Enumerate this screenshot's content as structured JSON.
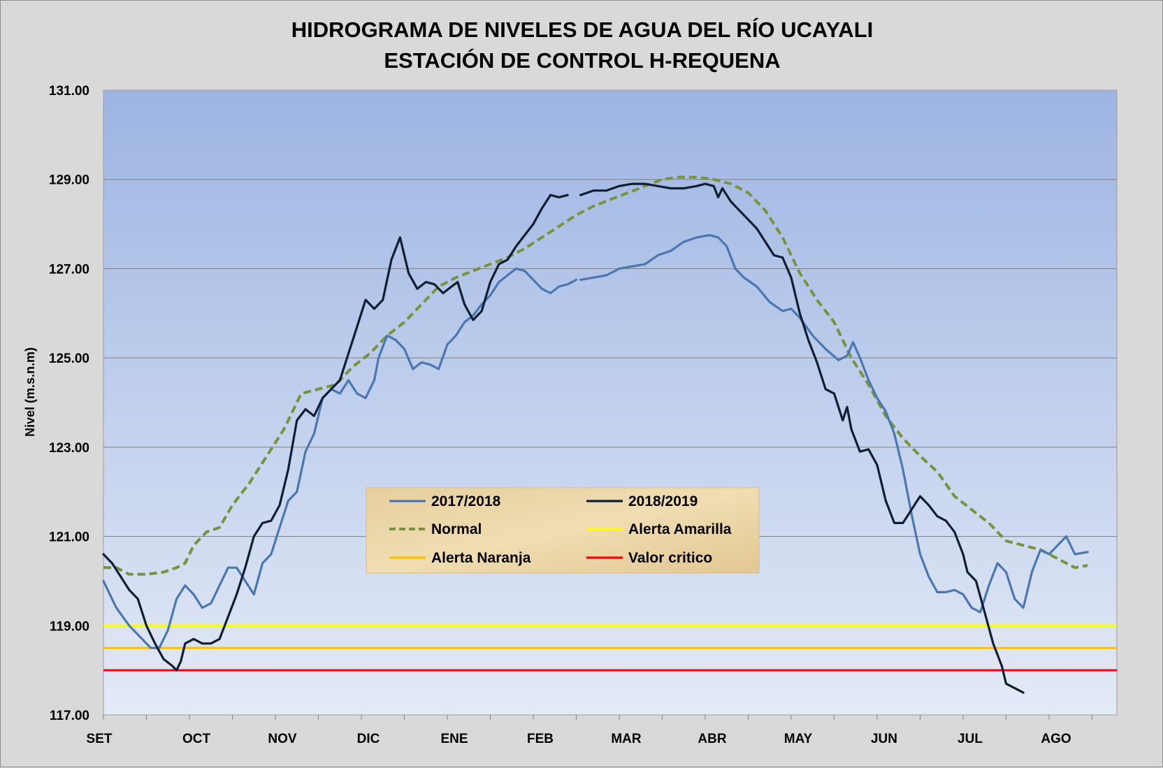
{
  "chart_data": {
    "type": "line",
    "title": "HIDROGRAMA DE NIVELES DE AGUA DEL RÍO UCAYALI",
    "subtitle": "ESTACIÓN DE CONTROL H-REQUENA",
    "ylabel": "Nivel (m.s.n.m)",
    "xlabel": "",
    "ylim": [
      117,
      131
    ],
    "yticks": [
      "117.00",
      "119.00",
      "121.00",
      "123.00",
      "125.00",
      "127.00",
      "129.00",
      "131.00"
    ],
    "xlim": [
      0,
      11.55
    ],
    "categories": [
      "SET",
      "OCT",
      "NOV",
      "DIC",
      "ENE",
      "FEB",
      "MAR",
      "ABR",
      "MAY",
      "JUN",
      "JUL",
      "AGO"
    ],
    "grid": true,
    "legend_position": "center-left",
    "series": [
      {
        "name": "2017/2018",
        "color": "#4a77b0",
        "style": "solid",
        "points": [
          [
            0,
            120.0
          ],
          [
            0.15,
            119.4
          ],
          [
            0.3,
            119.0
          ],
          [
            0.45,
            118.7
          ],
          [
            0.55,
            118.5
          ],
          [
            0.65,
            118.5
          ],
          [
            0.75,
            118.9
          ],
          [
            0.85,
            119.6
          ],
          [
            0.95,
            119.9
          ],
          [
            1.05,
            119.7
          ],
          [
            1.15,
            119.4
          ],
          [
            1.25,
            119.5
          ],
          [
            1.35,
            119.9
          ],
          [
            1.45,
            120.3
          ],
          [
            1.55,
            120.3
          ],
          [
            1.65,
            120.0
          ],
          [
            1.75,
            119.7
          ],
          [
            1.85,
            120.4
          ],
          [
            1.95,
            120.6
          ],
          [
            2.05,
            121.2
          ],
          [
            2.15,
            121.8
          ],
          [
            2.25,
            122.0
          ],
          [
            2.35,
            122.9
          ],
          [
            2.45,
            123.3
          ],
          [
            2.55,
            124.1
          ],
          [
            2.65,
            124.3
          ],
          [
            2.75,
            124.2
          ],
          [
            2.85,
            124.5
          ],
          [
            2.95,
            124.2
          ],
          [
            3.05,
            124.1
          ],
          [
            3.15,
            124.5
          ],
          [
            3.2,
            125.0
          ],
          [
            3.3,
            125.5
          ],
          [
            3.4,
            125.4
          ],
          [
            3.5,
            125.2
          ],
          [
            3.6,
            124.75
          ],
          [
            3.7,
            124.9
          ],
          [
            3.8,
            124.85
          ],
          [
            3.9,
            124.75
          ],
          [
            4.0,
            125.3
          ],
          [
            4.1,
            125.5
          ],
          [
            4.2,
            125.8
          ],
          [
            4.3,
            125.95
          ],
          [
            4.4,
            126.2
          ],
          [
            4.5,
            126.4
          ],
          [
            4.6,
            126.7
          ],
          [
            4.7,
            126.85
          ],
          [
            4.8,
            127.0
          ],
          [
            4.9,
            126.95
          ],
          [
            5.0,
            126.75
          ],
          [
            5.1,
            126.55
          ],
          [
            5.2,
            126.45
          ],
          [
            5.3,
            126.6
          ],
          [
            5.4,
            126.65
          ],
          [
            5.5,
            126.75
          ],
          null,
          [
            5.55,
            126.75
          ],
          [
            5.7,
            126.8
          ],
          [
            5.85,
            126.85
          ],
          [
            6.0,
            127.0
          ],
          [
            6.15,
            127.05
          ],
          [
            6.3,
            127.1
          ],
          [
            6.45,
            127.3
          ],
          [
            6.6,
            127.4
          ],
          [
            6.75,
            127.6
          ],
          [
            6.9,
            127.7
          ],
          [
            7.05,
            127.75
          ],
          [
            7.15,
            127.7
          ],
          [
            7.25,
            127.5
          ],
          [
            7.35,
            127.0
          ],
          [
            7.45,
            126.8
          ],
          [
            7.6,
            126.6
          ],
          [
            7.75,
            126.25
          ],
          [
            7.9,
            126.05
          ],
          [
            8.0,
            126.1
          ],
          [
            8.1,
            125.9
          ],
          [
            8.25,
            125.5
          ],
          [
            8.4,
            125.2
          ],
          [
            8.55,
            124.95
          ],
          [
            8.65,
            125.05
          ],
          [
            8.72,
            125.35
          ],
          [
            8.8,
            125.0
          ],
          [
            8.9,
            124.5
          ],
          [
            9.0,
            124.1
          ],
          [
            9.1,
            123.8
          ],
          [
            9.2,
            123.3
          ],
          [
            9.3,
            122.5
          ],
          [
            9.4,
            121.5
          ],
          [
            9.5,
            120.6
          ],
          [
            9.6,
            120.1
          ],
          [
            9.7,
            119.75
          ],
          [
            9.8,
            119.75
          ],
          [
            9.9,
            119.8
          ],
          [
            10.0,
            119.7
          ],
          [
            10.1,
            119.4
          ],
          [
            10.2,
            119.3
          ],
          [
            10.3,
            119.9
          ],
          [
            10.4,
            120.4
          ],
          [
            10.5,
            120.2
          ],
          [
            10.6,
            119.6
          ],
          [
            10.7,
            119.4
          ],
          [
            10.8,
            120.2
          ],
          [
            10.9,
            120.7
          ],
          [
            11.0,
            120.6
          ],
          [
            11.1,
            120.8
          ],
          [
            11.2,
            121.0
          ],
          [
            11.3,
            120.6
          ],
          [
            11.45,
            120.65
          ]
        ]
      },
      {
        "name": "2018/2019",
        "color": "#0f1e33",
        "style": "solid",
        "points": [
          [
            0,
            120.6
          ],
          [
            0.1,
            120.4
          ],
          [
            0.2,
            120.1
          ],
          [
            0.3,
            119.8
          ],
          [
            0.4,
            119.6
          ],
          [
            0.5,
            119.0
          ],
          [
            0.6,
            118.6
          ],
          [
            0.7,
            118.25
          ],
          [
            0.8,
            118.1
          ],
          [
            0.85,
            118.0
          ],
          [
            0.9,
            118.2
          ],
          [
            0.95,
            118.6
          ],
          [
            1.05,
            118.7
          ],
          [
            1.15,
            118.6
          ],
          [
            1.25,
            118.6
          ],
          [
            1.35,
            118.7
          ],
          [
            1.45,
            119.2
          ],
          [
            1.55,
            119.7
          ],
          [
            1.65,
            120.3
          ],
          [
            1.75,
            121.0
          ],
          [
            1.85,
            121.3
          ],
          [
            1.95,
            121.35
          ],
          [
            2.05,
            121.7
          ],
          [
            2.15,
            122.5
          ],
          [
            2.25,
            123.6
          ],
          [
            2.35,
            123.85
          ],
          [
            2.45,
            123.7
          ],
          [
            2.55,
            124.1
          ],
          [
            2.65,
            124.3
          ],
          [
            2.75,
            124.5
          ],
          [
            2.85,
            125.1
          ],
          [
            2.95,
            125.7
          ],
          [
            3.05,
            126.3
          ],
          [
            3.15,
            126.1
          ],
          [
            3.25,
            126.3
          ],
          [
            3.35,
            127.2
          ],
          [
            3.45,
            127.7
          ],
          [
            3.55,
            126.9
          ],
          [
            3.65,
            126.55
          ],
          [
            3.75,
            126.7
          ],
          [
            3.85,
            126.65
          ],
          [
            3.95,
            126.45
          ],
          [
            4.05,
            126.6
          ],
          [
            4.12,
            126.7
          ],
          [
            4.2,
            126.2
          ],
          [
            4.3,
            125.85
          ],
          [
            4.4,
            126.05
          ],
          [
            4.5,
            126.7
          ],
          [
            4.6,
            127.1
          ],
          [
            4.7,
            127.2
          ],
          [
            4.8,
            127.5
          ],
          [
            4.9,
            127.75
          ],
          [
            5.0,
            128.0
          ],
          [
            5.1,
            128.35
          ],
          [
            5.2,
            128.65
          ],
          [
            5.3,
            128.6
          ],
          [
            5.4,
            128.65
          ],
          null,
          [
            5.55,
            128.65
          ],
          [
            5.7,
            128.75
          ],
          [
            5.85,
            128.75
          ],
          [
            6.0,
            128.85
          ],
          [
            6.15,
            128.9
          ],
          [
            6.3,
            128.9
          ],
          [
            6.45,
            128.85
          ],
          [
            6.6,
            128.8
          ],
          [
            6.75,
            128.8
          ],
          [
            6.9,
            128.85
          ],
          [
            7.0,
            128.9
          ],
          [
            7.1,
            128.85
          ],
          [
            7.15,
            128.6
          ],
          [
            7.2,
            128.8
          ],
          [
            7.3,
            128.5
          ],
          [
            7.45,
            128.2
          ],
          [
            7.6,
            127.9
          ],
          [
            7.7,
            127.6
          ],
          [
            7.8,
            127.3
          ],
          [
            7.9,
            127.25
          ],
          [
            8.0,
            126.8
          ],
          [
            8.1,
            126.0
          ],
          [
            8.2,
            125.4
          ],
          [
            8.3,
            124.9
          ],
          [
            8.4,
            124.3
          ],
          [
            8.5,
            124.2
          ],
          [
            8.6,
            123.6
          ],
          [
            8.65,
            123.9
          ],
          [
            8.7,
            123.4
          ],
          [
            8.8,
            122.9
          ],
          [
            8.9,
            122.95
          ],
          [
            9.0,
            122.6
          ],
          [
            9.1,
            121.8
          ],
          [
            9.2,
            121.3
          ],
          [
            9.3,
            121.3
          ],
          [
            9.4,
            121.6
          ],
          [
            9.5,
            121.9
          ],
          [
            9.6,
            121.7
          ],
          [
            9.7,
            121.45
          ],
          [
            9.8,
            121.35
          ],
          [
            9.9,
            121.1
          ],
          [
            10.0,
            120.6
          ],
          [
            10.05,
            120.2
          ],
          [
            10.15,
            120.0
          ],
          [
            10.25,
            119.3
          ],
          [
            10.35,
            118.6
          ],
          [
            10.45,
            118.1
          ],
          [
            10.5,
            117.7
          ],
          [
            10.6,
            117.6
          ],
          [
            10.7,
            117.5
          ]
        ]
      },
      {
        "name": "Normal",
        "color": "#77933c",
        "style": "dashed",
        "points": [
          [
            0,
            120.3
          ],
          [
            0.15,
            120.3
          ],
          [
            0.3,
            120.15
          ],
          [
            0.5,
            120.15
          ],
          [
            0.7,
            120.2
          ],
          [
            0.85,
            120.3
          ],
          [
            0.95,
            120.4
          ],
          [
            1.05,
            120.8
          ],
          [
            1.2,
            121.1
          ],
          [
            1.35,
            121.2
          ],
          [
            1.5,
            121.7
          ],
          [
            1.7,
            122.2
          ],
          [
            1.9,
            122.8
          ],
          [
            2.1,
            123.4
          ],
          [
            2.3,
            124.2
          ],
          [
            2.5,
            124.3
          ],
          [
            2.7,
            124.4
          ],
          [
            2.9,
            124.8
          ],
          [
            3.1,
            125.1
          ],
          [
            3.3,
            125.5
          ],
          [
            3.5,
            125.8
          ],
          [
            3.7,
            126.2
          ],
          [
            3.9,
            126.6
          ],
          [
            4.1,
            126.8
          ],
          [
            4.3,
            126.95
          ],
          [
            4.5,
            127.1
          ],
          [
            4.7,
            127.25
          ],
          [
            4.9,
            127.45
          ],
          [
            5.1,
            127.7
          ],
          [
            5.3,
            127.95
          ],
          [
            5.5,
            128.2
          ],
          [
            5.7,
            128.4
          ],
          [
            5.9,
            128.55
          ],
          [
            6.1,
            128.7
          ],
          [
            6.3,
            128.85
          ],
          [
            6.5,
            129.0
          ],
          [
            6.7,
            129.05
          ],
          [
            6.9,
            129.05
          ],
          [
            7.1,
            129.0
          ],
          [
            7.3,
            128.9
          ],
          [
            7.5,
            128.7
          ],
          [
            7.7,
            128.3
          ],
          [
            7.9,
            127.7
          ],
          [
            8.1,
            126.9
          ],
          [
            8.3,
            126.3
          ],
          [
            8.5,
            125.8
          ],
          [
            8.7,
            125.0
          ],
          [
            8.9,
            124.4
          ],
          [
            9.1,
            123.7
          ],
          [
            9.3,
            123.2
          ],
          [
            9.5,
            122.8
          ],
          [
            9.7,
            122.45
          ],
          [
            9.9,
            121.9
          ],
          [
            10.1,
            121.6
          ],
          [
            10.3,
            121.3
          ],
          [
            10.5,
            120.9
          ],
          [
            10.7,
            120.8
          ],
          [
            10.9,
            120.7
          ],
          [
            11.1,
            120.5
          ],
          [
            11.3,
            120.3
          ],
          [
            11.45,
            120.35
          ]
        ]
      },
      {
        "name": "Alerta Amarilla",
        "color": "#ffff00",
        "style": "solid",
        "value": 119.0
      },
      {
        "name": "Alerta Naranja",
        "color": "#ffc000",
        "style": "solid",
        "value": 118.5
      },
      {
        "name": "Valor critico",
        "color": "#ff0000",
        "style": "solid",
        "value": 118.0
      }
    ]
  }
}
